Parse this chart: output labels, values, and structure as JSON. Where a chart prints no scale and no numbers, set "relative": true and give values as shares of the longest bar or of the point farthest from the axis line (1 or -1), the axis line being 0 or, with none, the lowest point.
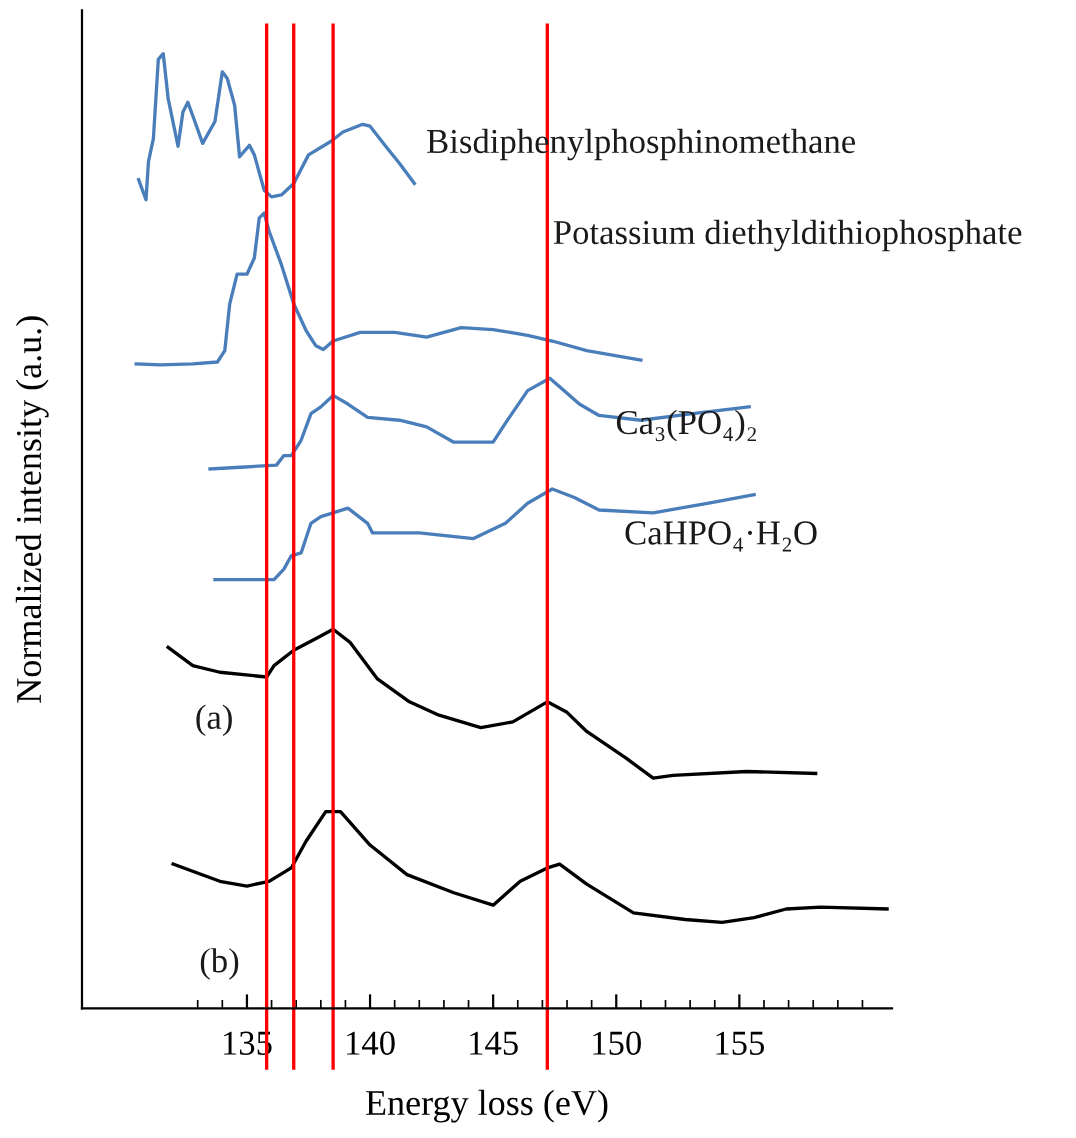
{
  "chart_data": {
    "type": "line",
    "relative": true,
    "xlabel": "Energy loss (eV)",
    "ylabel": "Normalized intensity (a.u.)",
    "xlim": [
      128.3,
      161.2
    ],
    "xticks": [
      {
        "value": 133,
        "label": null
      },
      {
        "value": 134,
        "label": null
      },
      135,
      {
        "value": 136,
        "label": null
      },
      {
        "value": 137,
        "label": null
      },
      {
        "value": 138,
        "label": null
      },
      {
        "value": 139,
        "label": null
      },
      140,
      {
        "value": 141,
        "label": null
      },
      {
        "value": 142,
        "label": null
      },
      {
        "value": 143,
        "label": null
      },
      {
        "value": 144,
        "label": null
      },
      145,
      {
        "value": 146,
        "label": null
      },
      {
        "value": 147,
        "label": null
      },
      {
        "value": 148,
        "label": null
      },
      {
        "value": 149,
        "label": null
      },
      150,
      {
        "value": 151,
        "label": null
      },
      {
        "value": 152,
        "label": null
      },
      {
        "value": 153,
        "label": null
      },
      {
        "value": 154,
        "label": null
      },
      155,
      {
        "value": 156,
        "label": null
      },
      {
        "value": 157,
        "label": null
      },
      {
        "value": 158,
        "label": null
      },
      {
        "value": 159,
        "label": null
      },
      {
        "value": 160,
        "label": null
      }
    ],
    "grid": false,
    "legend": false,
    "marker": "none",
    "line_style": "solid",
    "ref_lines": [
      {
        "axis": "x",
        "value": 135.8,
        "color": "#ff0000"
      },
      {
        "axis": "x",
        "value": 136.9,
        "color": "#ff0000"
      },
      {
        "axis": "x",
        "value": 138.5,
        "color": "#ff0000"
      },
      {
        "axis": "x",
        "value": 147.2,
        "color": "#ff0000"
      }
    ],
    "series": [
      {
        "name": "Bisdiphenylphosphinomethane",
        "color": "#4a7ebb",
        "x": [
          130.6,
          130.9,
          131.0,
          131.2,
          131.4,
          131.6,
          131.8,
          132.2,
          132.4,
          132.6,
          132.8,
          133.2,
          133.7,
          134.0,
          134.2,
          134.5,
          134.7,
          135.1,
          135.3,
          135.7,
          136.0,
          136.4,
          136.9,
          137.5,
          138.4,
          138.9,
          139.7,
          140.0,
          140.7,
          141.2,
          141.8
        ],
        "values": [
          0.868,
          0.847,
          0.887,
          0.911,
          0.994,
          1.0,
          0.953,
          0.903,
          0.939,
          0.949,
          0.935,
          0.906,
          0.929,
          0.981,
          0.974,
          0.946,
          0.892,
          0.904,
          0.894,
          0.857,
          0.85,
          0.852,
          0.864,
          0.894,
          0.908,
          0.918,
          0.926,
          0.924,
          0.901,
          0.885,
          0.864
        ]
      },
      {
        "name": "Potassium diethyldithiophosphate",
        "color": "#4a7ebb",
        "x": [
          130.5,
          131.5,
          132.8,
          133.8,
          134.1,
          134.3,
          134.6,
          135.0,
          135.3,
          135.5,
          135.7,
          135.9,
          136.4,
          136.9,
          137.4,
          137.8,
          138.1,
          138.5,
          139.6,
          141.0,
          142.3,
          143.7,
          145.0,
          146.4,
          147.4,
          148.8,
          151.0
        ],
        "values": [
          0.675,
          0.674,
          0.675,
          0.677,
          0.689,
          0.738,
          0.769,
          0.769,
          0.786,
          0.828,
          0.833,
          0.814,
          0.779,
          0.738,
          0.71,
          0.694,
          0.69,
          0.699,
          0.708,
          0.708,
          0.703,
          0.713,
          0.711,
          0.705,
          0.699,
          0.689,
          0.679
        ]
      },
      {
        "name": "Ca₃(PO₄)₂",
        "color": "#4a7ebb",
        "x": [
          133.5,
          134.9,
          136.2,
          136.5,
          136.8,
          137.2,
          137.6,
          138.0,
          138.5,
          139.1,
          139.9,
          141.2,
          142.3,
          143.4,
          145.0,
          145.5,
          146.4,
          147.3,
          147.7,
          148.5,
          149.3,
          151.0,
          153.1,
          155.4
        ],
        "values": [
          0.565,
          0.567,
          0.569,
          0.579,
          0.579,
          0.595,
          0.623,
          0.63,
          0.642,
          0.633,
          0.619,
          0.616,
          0.609,
          0.593,
          0.593,
          0.613,
          0.647,
          0.66,
          0.651,
          0.633,
          0.621,
          0.616,
          0.623,
          0.63
        ]
      },
      {
        "name": "CaHPO₄·H₂O",
        "color": "#4a7ebb",
        "x": [
          133.7,
          136.1,
          136.5,
          136.8,
          137.2,
          137.6,
          138.0,
          138.5,
          139.1,
          139.9,
          140.1,
          142.0,
          144.2,
          145.5,
          146.4,
          147.4,
          148.3,
          149.3,
          151.5,
          153.7,
          155.6
        ],
        "values": [
          0.449,
          0.449,
          0.46,
          0.474,
          0.477,
          0.508,
          0.515,
          0.519,
          0.524,
          0.508,
          0.498,
          0.498,
          0.492,
          0.508,
          0.529,
          0.544,
          0.535,
          0.522,
          0.519,
          0.529,
          0.538
        ]
      },
      {
        "name": "(a)",
        "color": "#000000",
        "x": [
          131.8,
          132.8,
          133.9,
          135.8,
          136.1,
          136.9,
          138.0,
          138.5,
          139.2,
          140.3,
          141.6,
          142.8,
          144.5,
          145.8,
          147.2,
          148.0,
          148.8,
          150.4,
          151.5,
          152.3,
          155.3,
          158.1
        ],
        "values": [
          0.378,
          0.359,
          0.352,
          0.347,
          0.359,
          0.375,
          0.39,
          0.397,
          0.383,
          0.345,
          0.321,
          0.307,
          0.294,
          0.3,
          0.321,
          0.31,
          0.29,
          0.262,
          0.241,
          0.244,
          0.248,
          0.246
        ]
      },
      {
        "name": "(b)",
        "color": "#000000",
        "x": [
          132.0,
          133.9,
          135.0,
          135.9,
          136.8,
          137.4,
          138.2,
          138.8,
          140.0,
          141.5,
          143.4,
          145.0,
          146.1,
          147.2,
          147.7,
          148.8,
          150.7,
          152.8,
          154.3,
          155.6,
          156.9,
          158.3,
          161.0
        ],
        "values": [
          0.151,
          0.133,
          0.128,
          0.133,
          0.147,
          0.175,
          0.206,
          0.206,
          0.171,
          0.14,
          0.121,
          0.108,
          0.133,
          0.147,
          0.151,
          0.13,
          0.1,
          0.093,
          0.09,
          0.095,
          0.104,
          0.106,
          0.104
        ]
      }
    ]
  }
}
